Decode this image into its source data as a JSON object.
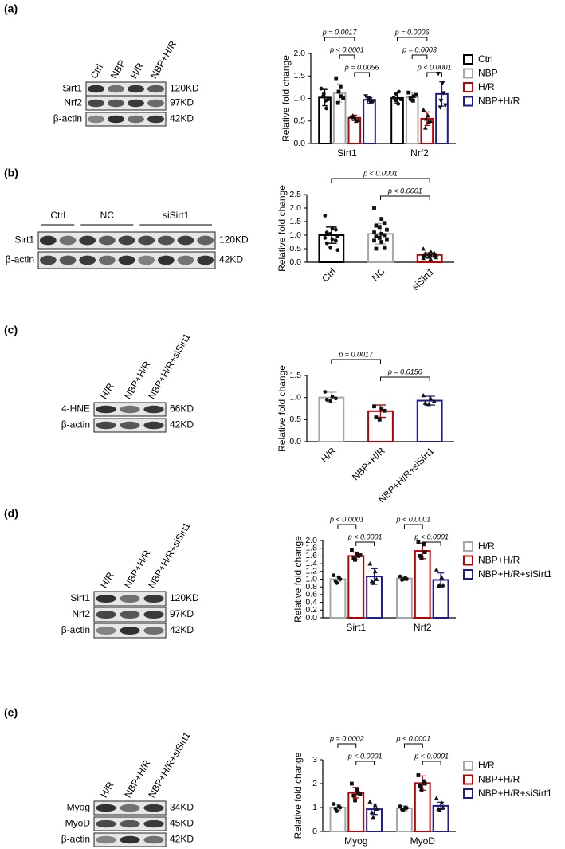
{
  "figure_labels": [
    "(a)",
    "(b)",
    "(c)",
    "(d)",
    "(e)"
  ],
  "blots": [
    {
      "lanes": [
        "Ctrl",
        "NBP",
        "H/R",
        "NBP+H/R"
      ],
      "rows": [
        {
          "name": "Sirt1",
          "size": "120KD"
        },
        {
          "name": "Nrf2",
          "size": "97KD"
        },
        {
          "name": "β-actin",
          "size": "42KD"
        }
      ]
    },
    {
      "groups": [
        "Ctrl",
        "NC",
        "siSirt1"
      ],
      "rows": [
        {
          "name": "Sirt1",
          "size": "120KD"
        },
        {
          "name": "β-actin",
          "size": "42KD"
        }
      ]
    },
    {
      "lanes": [
        "H/R",
        "NBP+H/R",
        "NBP+H/R+siSirt1"
      ],
      "rows": [
        {
          "name": "4-HNE",
          "size": "66KD"
        },
        {
          "name": "β-actin",
          "size": "42KD"
        }
      ]
    },
    {
      "lanes": [
        "H/R",
        "NBP+H/R",
        "NBP+H/R+siSirt1"
      ],
      "rows": [
        {
          "name": "Sirt1",
          "size": "120KD"
        },
        {
          "name": "Nrf2",
          "size": "97KD"
        },
        {
          "name": "β-actin",
          "size": "42KD"
        }
      ]
    },
    {
      "lanes": [
        "H/R",
        "NBP+H/R",
        "NBP+H/R+siSirt1"
      ],
      "rows": [
        {
          "name": "Myog",
          "size": "34KD"
        },
        {
          "name": "MyoD",
          "size": "45KD"
        },
        {
          "name": "β-actin",
          "size": "42KD"
        }
      ]
    }
  ],
  "chart_data": [
    {
      "type": "bar",
      "ylabel": "Relative fold change",
      "categories": [
        "Sirt1",
        "Nrf2"
      ],
      "series": [
        {
          "name": "Ctrl",
          "color": "#000000",
          "values": [
            1.02,
            1.01
          ],
          "errors": [
            0.18,
            0.12
          ],
          "points": [
            [
              1.22,
              0.95,
              0.78,
              1.05,
              1.1,
              0.98
            ],
            [
              1.02,
              0.88,
              1.15,
              0.95,
              1.1,
              0.98
            ]
          ]
        },
        {
          "name": "NBP",
          "color": "#a6a6a6",
          "values": [
            1.12,
            1.03
          ],
          "errors": [
            0.2,
            0.1
          ],
          "points": [
            [
              1.45,
              1.25,
              1.05,
              0.9,
              1.15,
              1.0
            ],
            [
              1.13,
              0.95,
              1.05,
              1.0,
              0.98,
              1.08
            ]
          ]
        },
        {
          "name": "H/R",
          "color": "#c00000",
          "values": [
            0.57,
            0.55
          ],
          "errors": [
            0.06,
            0.15
          ],
          "points": [
            [
              0.6,
              0.55,
              0.5,
              0.62,
              0.58,
              0.52
            ],
            [
              0.75,
              0.62,
              0.48,
              0.35,
              0.55,
              0.5
            ]
          ]
        },
        {
          "name": "NBP+H/R",
          "color": "#1c1c8c",
          "values": [
            0.97,
            1.1
          ],
          "errors": [
            0.08,
            0.27
          ],
          "points": [
            [
              1.05,
              0.98,
              0.9,
              0.95,
              1.0,
              0.92
            ],
            [
              1.55,
              1.35,
              1.12,
              0.8,
              0.95,
              0.85
            ]
          ]
        }
      ],
      "ylim": [
        0,
        2
      ],
      "yticks": [
        {
          "value": 0,
          "label": "0.0"
        },
        {
          "value": 0.5,
          "label": "0.5"
        },
        {
          "value": 1,
          "label": "1.0"
        },
        {
          "value": 1.5,
          "label": "1.5"
        },
        {
          "value": 2,
          "label": "2.0"
        }
      ],
      "legend": "right",
      "annotations": [
        {
          "text": "p = 0.0017",
          "category": "Sirt1",
          "between": [
            "Ctrl",
            "H/R"
          ]
        },
        {
          "text": "p < 0.0001",
          "category": "Sirt1",
          "between": [
            "NBP",
            "H/R"
          ]
        },
        {
          "text": "p = 0.0056",
          "category": "Sirt1",
          "between": [
            "H/R",
            "NBP+H/R"
          ]
        },
        {
          "text": "p = 0.0006",
          "category": "Nrf2",
          "between": [
            "Ctrl",
            "H/R"
          ]
        },
        {
          "text": "p = 0.0003",
          "category": "Nrf2",
          "between": [
            "NBP",
            "H/R"
          ]
        },
        {
          "text": "p < 0.0001",
          "category": "Nrf2",
          "between": [
            "H/R",
            "NBP+H/R"
          ]
        }
      ]
    },
    {
      "type": "bar",
      "ylabel": "Relative fold change",
      "categories": [
        "Ctrl",
        "NC",
        "siSirt1"
      ],
      "values": [
        1.0,
        1.05,
        0.27
      ],
      "errors": [
        0.3,
        0.38,
        0.08
      ],
      "colors": [
        "#000000",
        "#a6a6a6",
        "#c00000"
      ],
      "points": [
        [
          1.72,
          1.25,
          1.2,
          1.1,
          1.05,
          0.95,
          0.9,
          0.85,
          0.8,
          0.7,
          0.55,
          0.45
        ],
        [
          2.0,
          1.6,
          1.45,
          1.35,
          1.3,
          1.2,
          1.1,
          1.05,
          1.0,
          0.95,
          0.9,
          0.85,
          0.8,
          0.75,
          0.55,
          0.5
        ],
        [
          0.5,
          0.4,
          0.35,
          0.32,
          0.3,
          0.28,
          0.26,
          0.25,
          0.24,
          0.22,
          0.2,
          0.18,
          0.15,
          0.12
        ]
      ],
      "ylim": [
        0,
        2.5
      ],
      "yticks": [
        {
          "value": 0,
          "label": "0.0"
        },
        {
          "value": 0.5,
          "label": "0.5"
        },
        {
          "value": 1,
          "label": "1.0"
        },
        {
          "value": 1.5,
          "label": "1.5"
        },
        {
          "value": 2,
          "label": "2.0"
        },
        {
          "value": 2.5,
          "label": "2.5"
        }
      ],
      "annotations": [
        {
          "text": "p < 0.0001",
          "between": [
            "Ctrl",
            "siSirt1"
          ]
        },
        {
          "text": "p < 0.0001",
          "between": [
            "NC",
            "siSirt1"
          ]
        }
      ]
    },
    {
      "type": "bar",
      "ylabel": "Relative fold change",
      "categories": [
        "H/R",
        "NBP+H/R",
        "NBP+H/R+siSirt1"
      ],
      "values": [
        1.0,
        0.69,
        0.93
      ],
      "errors": [
        0.12,
        0.14,
        0.1
      ],
      "colors": [
        "#a6a6a6",
        "#c00000",
        "#1c1c8c"
      ],
      "points": [
        [
          1.13,
          1.02,
          0.98,
          0.95,
          0.92
        ],
        [
          0.8,
          0.75,
          0.7,
          0.55,
          0.5
        ],
        [
          1.05,
          0.98,
          0.92,
          0.88,
          0.85
        ]
      ],
      "ylim": [
        0,
        1.5
      ],
      "yticks": [
        {
          "value": 0,
          "label": "0.0"
        },
        {
          "value": 0.5,
          "label": "0.5"
        },
        {
          "value": 1,
          "label": "1.0"
        },
        {
          "value": 1.5,
          "label": "1.5"
        }
      ],
      "annotations": [
        {
          "text": "p = 0.0017",
          "between": [
            "H/R",
            "NBP+H/R"
          ]
        },
        {
          "text": "p = 0.0150",
          "between": [
            "NBP+H/R",
            "NBP+H/R+siSirt1"
          ]
        }
      ]
    },
    {
      "type": "bar",
      "ylabel": "Relative fold change",
      "categories": [
        "Sirt1",
        "Nrf2"
      ],
      "series": [
        {
          "name": "H/R",
          "color": "#a6a6a6",
          "values": [
            1.0,
            1.02
          ],
          "errors": [
            0.07,
            0.05
          ],
          "points": [
            [
              1.1,
              1.05,
              1.0,
              0.95,
              0.9
            ],
            [
              1.07,
              1.03,
              1.0,
              0.98,
              1.0
            ]
          ]
        },
        {
          "name": "NBP+H/R",
          "color": "#c00000",
          "values": [
            1.6,
            1.73
          ],
          "errors": [
            0.1,
            0.2
          ],
          "points": [
            [
              1.75,
              1.65,
              1.6,
              1.55,
              1.5,
              1.62
            ],
            [
              1.95,
              1.9,
              1.7,
              1.6,
              1.55
            ]
          ]
        },
        {
          "name": "NBP+H/R+siSirt1",
          "color": "#1c1c8c",
          "values": [
            1.07,
            0.98
          ],
          "errors": [
            0.2,
            0.18
          ],
          "points": [
            [
              1.4,
              1.2,
              1.0,
              0.95,
              0.9
            ],
            [
              1.25,
              1.05,
              0.85,
              0.82,
              0.85
            ]
          ]
        }
      ],
      "ylim": [
        0,
        2
      ],
      "yticks": [
        {
          "value": 0,
          "label": "0.0"
        },
        {
          "value": 0.2,
          "label": "0.2"
        },
        {
          "value": 0.4,
          "label": "0.4"
        },
        {
          "value": 0.6,
          "label": "0.6"
        },
        {
          "value": 0.8,
          "label": "0.8"
        },
        {
          "value": 1,
          "label": "1.0"
        },
        {
          "value": 1.2,
          "label": "1.2"
        },
        {
          "value": 1.4,
          "label": "1.4"
        },
        {
          "value": 1.6,
          "label": "1.6"
        },
        {
          "value": 1.8,
          "label": "1.8"
        },
        {
          "value": 2,
          "label": "2.0"
        }
      ],
      "legend": "right",
      "annotations": [
        {
          "text": "p < 0.0001",
          "category": "Sirt1",
          "between": [
            "H/R",
            "NBP+H/R"
          ]
        },
        {
          "text": "p < 0.0001",
          "category": "Sirt1",
          "between": [
            "NBP+H/R",
            "NBP+H/R+siSirt1"
          ]
        },
        {
          "text": "p < 0.0001",
          "category": "Nrf2",
          "between": [
            "H/R",
            "NBP+H/R"
          ]
        },
        {
          "text": "p < 0.0001",
          "category": "Nrf2",
          "between": [
            "NBP+H/R",
            "NBP+H/R+siSirt1"
          ]
        }
      ]
    },
    {
      "type": "bar",
      "ylabel": "Relative fold change",
      "categories": [
        "Myog",
        "MyoD"
      ],
      "series": [
        {
          "name": "H/R",
          "color": "#a6a6a6",
          "values": [
            1.0,
            0.97
          ],
          "errors": [
            0.12,
            0.1
          ],
          "points": [
            [
              1.15,
              1.05,
              1.0,
              0.95,
              0.85
            ],
            [
              1.05,
              1.0,
              0.98,
              0.92,
              0.9
            ]
          ]
        },
        {
          "name": "NBP+H/R",
          "color": "#c00000",
          "values": [
            1.62,
            2.02
          ],
          "errors": [
            0.22,
            0.3
          ],
          "points": [
            [
              2.0,
              1.75,
              1.6,
              1.5,
              1.3,
              1.55
            ],
            [
              2.35,
              2.1,
              2.0,
              1.9,
              1.75
            ]
          ]
        },
        {
          "name": "NBP+H/R+siSirt1",
          "color": "#1c1c8c",
          "values": [
            0.93,
            1.07
          ],
          "errors": [
            0.22,
            0.15
          ],
          "points": [
            [
              1.25,
              1.1,
              0.95,
              0.8,
              0.6
            ],
            [
              1.4,
              1.2,
              1.0,
              0.95,
              0.9
            ]
          ]
        }
      ],
      "ylim": [
        0,
        3
      ],
      "yticks": [
        0,
        1,
        2,
        3
      ],
      "legend": "right",
      "annotations": [
        {
          "text": "p = 0.0002",
          "category": "Myog",
          "between": [
            "H/R",
            "NBP+H/R"
          ]
        },
        {
          "text": "p < 0.0001",
          "category": "Myog",
          "between": [
            "NBP+H/R",
            "NBP+H/R+siSirt1"
          ]
        },
        {
          "text": "p < 0.0001",
          "category": "MyoD",
          "between": [
            "H/R",
            "NBP+H/R"
          ]
        },
        {
          "text": "p < 0.0001",
          "category": "MyoD",
          "between": [
            "NBP+H/R",
            "NBP+H/R+siSirt1"
          ]
        }
      ]
    }
  ]
}
